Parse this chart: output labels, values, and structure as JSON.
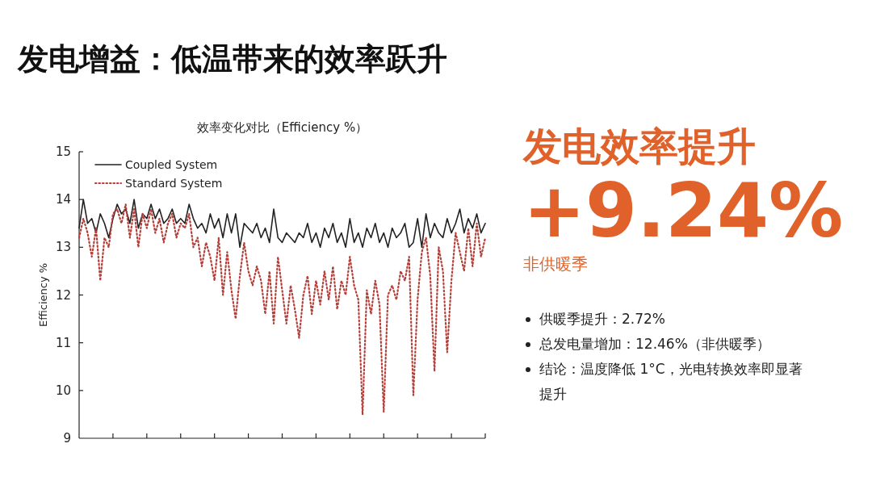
{
  "chart_data": [
    {
      "type": "line",
      "title": "发电增益：低温带来的效率跃升",
      "subtitle": "效率变化对比（Efficiency %）",
      "ylabel": "Efficiency %",
      "categories": [
        null,
        null,
        null,
        null,
        null,
        null,
        null,
        null,
        null,
        null,
        null,
        null,
        null,
        null,
        null,
        null,
        null,
        null,
        null,
        null,
        null,
        null,
        null,
        null,
        null,
        null,
        null,
        null,
        null,
        null,
        null,
        null,
        null,
        null,
        null,
        null,
        null,
        null,
        null,
        null,
        null,
        null,
        null,
        null,
        null,
        null,
        null,
        null,
        null,
        null,
        null,
        null,
        null,
        null,
        null,
        null,
        null,
        null,
        null,
        null,
        null,
        null,
        null,
        null,
        null,
        null,
        null,
        null,
        null,
        null,
        null,
        null,
        null,
        null,
        null,
        null,
        null,
        null,
        null,
        null,
        null,
        null,
        null,
        null,
        null,
        null,
        null,
        null,
        null,
        null,
        null,
        null,
        null,
        null,
        null,
        null,
        null
      ],
      "ylim": [
        9,
        15
      ],
      "yticks": [
        9,
        10,
        11,
        12,
        13,
        14,
        15
      ],
      "tick_labels": "y",
      "legend": "top left",
      "series": [
        {
          "name": "Coupled System",
          "color": "#222222",
          "line_style": "solid",
          "values": [
            13.4,
            14.0,
            13.5,
            13.6,
            13.3,
            13.7,
            13.5,
            13.2,
            13.6,
            13.9,
            13.7,
            13.8,
            13.5,
            14.0,
            13.4,
            13.7,
            13.6,
            13.9,
            13.6,
            13.8,
            13.5,
            13.6,
            13.8,
            13.5,
            13.6,
            13.5,
            13.9,
            13.6,
            13.4,
            13.5,
            13.3,
            13.7,
            13.4,
            13.6,
            13.2,
            13.7,
            13.3,
            13.7,
            13.0,
            13.5,
            13.4,
            13.3,
            13.5,
            13.2,
            13.4,
            13.1,
            13.8,
            13.2,
            13.1,
            13.3,
            13.2,
            13.1,
            13.3,
            13.2,
            13.5,
            13.1,
            13.3,
            13.0,
            13.4,
            13.2,
            13.5,
            13.1,
            13.3,
            13.0,
            13.6,
            13.1,
            13.3,
            13.0,
            13.4,
            13.2,
            13.5,
            13.1,
            13.3,
            13.0,
            13.4,
            13.2,
            13.3,
            13.5,
            13.0,
            13.1,
            13.6,
            13.0,
            13.7,
            13.2,
            13.5,
            13.3,
            13.2,
            13.6,
            13.3,
            13.5,
            13.8,
            13.3,
            13.6,
            13.4,
            13.7,
            13.3,
            13.5
          ]
        },
        {
          "name": "Standard System",
          "color": "#b5403a",
          "line_style": "dotted",
          "values": [
            13.2,
            13.6,
            13.3,
            12.8,
            13.4,
            12.3,
            13.2,
            13.0,
            13.7,
            13.8,
            13.5,
            13.9,
            13.2,
            13.8,
            13.0,
            13.7,
            13.4,
            13.8,
            13.3,
            13.6,
            13.1,
            13.5,
            13.7,
            13.2,
            13.5,
            13.4,
            13.7,
            13.0,
            13.2,
            12.6,
            13.1,
            12.8,
            12.3,
            13.2,
            12.0,
            12.9,
            12.1,
            11.5,
            12.4,
            13.1,
            12.5,
            12.2,
            12.6,
            12.3,
            11.6,
            12.5,
            11.4,
            12.8,
            12.1,
            11.4,
            12.2,
            11.7,
            11.1,
            12.0,
            12.4,
            11.6,
            12.3,
            11.8,
            12.5,
            11.9,
            12.6,
            11.7,
            12.3,
            12.0,
            12.8,
            12.2,
            11.9,
            9.5,
            12.1,
            11.6,
            12.3,
            11.8,
            9.55,
            12.0,
            12.2,
            11.9,
            12.5,
            12.3,
            12.8,
            9.9,
            11.9,
            12.9,
            13.2,
            12.4,
            10.4,
            13.0,
            12.5,
            10.8,
            12.3,
            13.3,
            12.9,
            12.5,
            13.4,
            12.6,
            13.5,
            12.8,
            13.2
          ]
        }
      ]
    },
    {
      "type": "other",
      "title": "发电效率提升",
      "annotations": [
        "+9.24%",
        "非供暖季",
        "供暖季提升：2.72%",
        "总发电量增加：12.46%（非供暖季）",
        "结论：温度降低 1°C，光电转换效率即显著提升"
      ]
    }
  ]
}
